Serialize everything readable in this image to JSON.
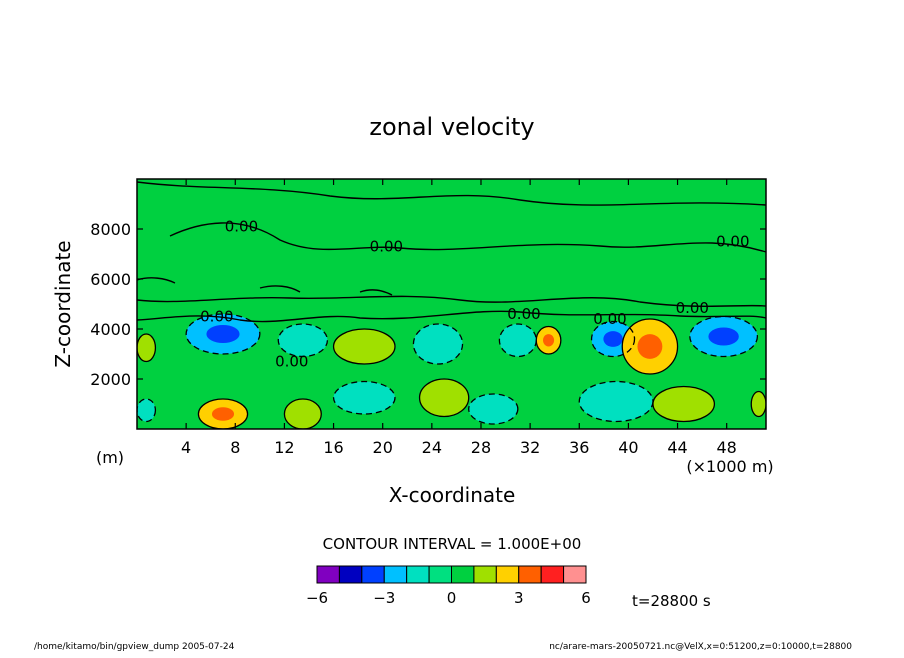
{
  "chart_data": {
    "type": "heatmap",
    "title": "zonal velocity",
    "xlabel": "X-coordinate",
    "ylabel": "Z-coordinate",
    "x_unit": "(×1000 m)",
    "y_unit": "(m)",
    "xlim": [
      0,
      51.2
    ],
    "ylim": [
      0,
      10000
    ],
    "x_ticks": [
      4,
      8,
      12,
      16,
      20,
      24,
      28,
      32,
      36,
      40,
      44,
      48
    ],
    "y_ticks": [
      2000,
      4000,
      6000,
      8000
    ],
    "contour_interval_text": "CONTOUR INTERVAL = 1.000E+00",
    "time_label": "t=28800 s",
    "colorbar": {
      "levels": [
        -6,
        -5,
        -4,
        -3,
        -2,
        -1,
        0,
        1,
        2,
        3,
        4,
        5,
        6
      ],
      "tick_labels": [
        "−6",
        "−3",
        "0",
        "3",
        "6"
      ],
      "tick_values": [
        -6,
        -3,
        0,
        3,
        6
      ],
      "colors": [
        "#8000c0",
        "#0000c0",
        "#0040ff",
        "#00c0ff",
        "#00e0c0",
        "#00e080",
        "#00d040",
        "#a0e000",
        "#ffd000",
        "#ff6000",
        "#ff2020",
        "#ff9090"
      ]
    },
    "contour_labels": [
      {
        "text": "0.00",
        "x": 8.5,
        "z": 7900
      },
      {
        "text": "0.00",
        "x": 20.3,
        "z": 7100
      },
      {
        "text": "0.00",
        "x": 48.5,
        "z": 7300
      },
      {
        "text": "0.00",
        "x": 6.5,
        "z": 4300
      },
      {
        "text": "0.00",
        "x": 12.6,
        "z": 2500
      },
      {
        "text": "0.00",
        "x": 31.5,
        "z": 4400
      },
      {
        "text": "0.00",
        "x": 38.5,
        "z": 4200
      },
      {
        "text": "0.00",
        "x": 45.2,
        "z": 4650
      }
    ],
    "field_regions": [
      {
        "name": "upper-flow",
        "value": 0.5,
        "x": [
          0,
          51.2
        ],
        "z": [
          5000,
          10000
        ]
      },
      {
        "name": "low-level-flow",
        "value": 0.5,
        "x": [
          0,
          51.2
        ],
        "z": [
          0,
          5000
        ]
      },
      {
        "name": "cell-1",
        "value": -2.5,
        "x": [
          4,
          10
        ],
        "z": [
          3000,
          4600
        ]
      },
      {
        "name": "cell-2",
        "value": -1.5,
        "x": [
          11.5,
          15.5
        ],
        "z": [
          2900,
          4200
        ]
      },
      {
        "name": "cell-3",
        "value": 1.5,
        "x": [
          16,
          21
        ],
        "z": [
          2600,
          4000
        ]
      },
      {
        "name": "cell-4",
        "value": -1.5,
        "x": [
          22.5,
          26.5
        ],
        "z": [
          2600,
          4200
        ]
      },
      {
        "name": "cell-5",
        "value": -1.5,
        "x": [
          29.5,
          32.5
        ],
        "z": [
          2900,
          4200
        ]
      },
      {
        "name": "cell-6",
        "value": 2.5,
        "x": [
          32.5,
          34.5
        ],
        "z": [
          3000,
          4100
        ]
      },
      {
        "name": "cell-7",
        "value": -2.5,
        "x": [
          37,
          40.5
        ],
        "z": [
          2900,
          4300
        ]
      },
      {
        "name": "cell-8",
        "value": 2.5,
        "x": [
          39.5,
          44
        ],
        "z": [
          2200,
          4400
        ]
      },
      {
        "name": "cell-9",
        "value": -2.5,
        "x": [
          45,
          50.5
        ],
        "z": [
          2900,
          4500
        ]
      },
      {
        "name": "cell-10",
        "value": 2.5,
        "x": [
          5,
          9
        ],
        "z": [
          0,
          1200
        ]
      },
      {
        "name": "cell-11",
        "value": 1.5,
        "x": [
          12,
          15
        ],
        "z": [
          0,
          1200
        ]
      },
      {
        "name": "cell-12",
        "value": -1.5,
        "x": [
          16,
          21
        ],
        "z": [
          600,
          1900
        ]
      },
      {
        "name": "cell-13",
        "value": 1.5,
        "x": [
          23,
          27
        ],
        "z": [
          500,
          2000
        ]
      },
      {
        "name": "cell-14",
        "value": -1.5,
        "x": [
          27,
          31
        ],
        "z": [
          200,
          1400
        ]
      },
      {
        "name": "cell-15",
        "value": -1.5,
        "x": [
          36,
          42
        ],
        "z": [
          300,
          1900
        ]
      },
      {
        "name": "cell-16",
        "value": 1.5,
        "x": [
          42,
          47
        ],
        "z": [
          300,
          1700
        ]
      },
      {
        "name": "cell-17",
        "value": 1.5,
        "x": [
          0,
          1.5
        ],
        "z": [
          2700,
          3800
        ]
      },
      {
        "name": "cell-18",
        "value": -1.5,
        "x": [
          0,
          1.5
        ],
        "z": [
          300,
          1200
        ]
      },
      {
        "name": "cell-19",
        "value": 1.5,
        "x": [
          50,
          51.2
        ],
        "z": [
          500,
          1500
        ]
      }
    ]
  },
  "footer": {
    "left": "/home/kitamo/bin/gpview_dump  2005-07-24",
    "right": "nc/arare-mars-20050721.nc@VelX,x=0:51200,z=0:10000,t=28800"
  }
}
